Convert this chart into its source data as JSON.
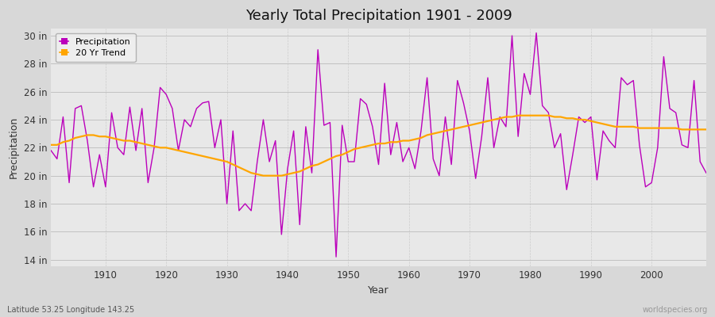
{
  "title": "Yearly Total Precipitation 1901 - 2009",
  "xlabel": "Year",
  "ylabel": "Precipitation",
  "lat_lon_label": "Latitude 53.25 Longitude 143.25",
  "watermark": "worldspecies.org",
  "ylim": [
    13.5,
    30.5
  ],
  "yticks": [
    14,
    16,
    18,
    20,
    22,
    24,
    26,
    28,
    30
  ],
  "ytick_labels": [
    "14 in",
    "16 in",
    "18 in",
    "20 in",
    "22 in",
    "24 in",
    "26 in",
    "28 in",
    "30 in"
  ],
  "xlim": [
    1901,
    2009
  ],
  "xticks": [
    1910,
    1920,
    1930,
    1940,
    1950,
    1960,
    1970,
    1980,
    1990,
    2000
  ],
  "years": [
    1901,
    1902,
    1903,
    1904,
    1905,
    1906,
    1907,
    1908,
    1909,
    1910,
    1911,
    1912,
    1913,
    1914,
    1915,
    1916,
    1917,
    1918,
    1919,
    1920,
    1921,
    1922,
    1923,
    1924,
    1925,
    1926,
    1927,
    1928,
    1929,
    1930,
    1931,
    1932,
    1933,
    1934,
    1935,
    1936,
    1937,
    1938,
    1939,
    1940,
    1941,
    1942,
    1943,
    1944,
    1945,
    1946,
    1947,
    1948,
    1949,
    1950,
    1951,
    1952,
    1953,
    1954,
    1955,
    1956,
    1957,
    1958,
    1959,
    1960,
    1961,
    1962,
    1963,
    1964,
    1965,
    1966,
    1967,
    1968,
    1969,
    1970,
    1971,
    1972,
    1973,
    1974,
    1975,
    1976,
    1977,
    1978,
    1979,
    1980,
    1981,
    1982,
    1983,
    1984,
    1985,
    1986,
    1987,
    1988,
    1989,
    1990,
    1991,
    1992,
    1993,
    1994,
    1995,
    1996,
    1997,
    1998,
    1999,
    2000,
    2001,
    2002,
    2003,
    2004,
    2005,
    2006,
    2007,
    2008,
    2009
  ],
  "precip": [
    21.8,
    21.2,
    24.2,
    19.5,
    24.8,
    25.0,
    22.5,
    19.2,
    21.5,
    19.2,
    24.5,
    22.0,
    21.5,
    24.9,
    21.8,
    24.8,
    19.5,
    22.0,
    26.3,
    25.8,
    24.8,
    21.8,
    24.0,
    23.5,
    24.8,
    25.2,
    25.3,
    22.0,
    24.0,
    18.0,
    23.2,
    17.5,
    18.0,
    17.5,
    21.0,
    24.0,
    21.0,
    22.5,
    15.8,
    20.5,
    23.2,
    16.5,
    23.5,
    20.2,
    29.0,
    23.6,
    23.8,
    14.2,
    23.6,
    21.0,
    21.0,
    25.5,
    25.1,
    23.5,
    20.8,
    26.6,
    21.5,
    23.8,
    21.0,
    22.0,
    20.5,
    23.2,
    27.0,
    21.2,
    20.0,
    24.2,
    20.8,
    26.8,
    25.2,
    23.2,
    19.8,
    22.8,
    27.0,
    22.0,
    24.2,
    23.5,
    30.0,
    22.8,
    27.3,
    25.8,
    30.2,
    25.0,
    24.5,
    22.0,
    23.0,
    19.0,
    21.5,
    24.2,
    23.8,
    24.2,
    19.7,
    23.2,
    22.5,
    22.0,
    27.0,
    26.5,
    26.8,
    22.2,
    19.2,
    19.5,
    22.0,
    28.5,
    24.8,
    24.5,
    22.2,
    22.0,
    26.8,
    21.0,
    20.2
  ],
  "trend": [
    22.2,
    22.2,
    22.4,
    22.5,
    22.7,
    22.8,
    22.9,
    22.9,
    22.8,
    22.8,
    22.7,
    22.6,
    22.5,
    22.5,
    22.4,
    22.3,
    22.2,
    22.1,
    22.0,
    22.0,
    21.9,
    21.8,
    21.7,
    21.6,
    21.5,
    21.4,
    21.3,
    21.2,
    21.1,
    21.0,
    20.8,
    20.6,
    20.4,
    20.2,
    20.1,
    20.0,
    20.0,
    20.0,
    20.0,
    20.1,
    20.2,
    20.3,
    20.5,
    20.7,
    20.8,
    21.0,
    21.2,
    21.4,
    21.5,
    21.7,
    21.9,
    22.0,
    22.1,
    22.2,
    22.3,
    22.3,
    22.4,
    22.4,
    22.5,
    22.5,
    22.6,
    22.7,
    22.9,
    23.0,
    23.1,
    23.2,
    23.3,
    23.4,
    23.5,
    23.6,
    23.7,
    23.8,
    23.9,
    24.0,
    24.1,
    24.2,
    24.2,
    24.3,
    24.3,
    24.3,
    24.3,
    24.3,
    24.3,
    24.2,
    24.2,
    24.1,
    24.1,
    24.0,
    24.0,
    23.9,
    23.8,
    23.7,
    23.6,
    23.5,
    23.5,
    23.5,
    23.5,
    23.4,
    23.4,
    23.4,
    23.4,
    23.4,
    23.4,
    23.4,
    23.3,
    23.3,
    23.3,
    23.3,
    23.3
  ],
  "precip_color": "#bb00bb",
  "trend_color": "#FFA500",
  "fig_bg_color": "#d8d8d8",
  "plot_bg_color": "#e8e8e8",
  "grid_major_color": "#bbbbbb",
  "grid_minor_color": "#cccccc"
}
